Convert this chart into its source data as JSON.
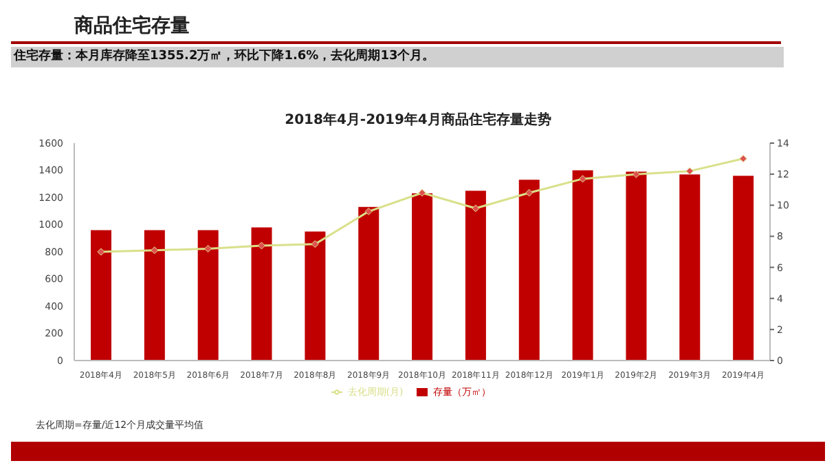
{
  "chart_data": {
    "type": "bar",
    "title": "2018年4月-2019年4月商品住宅存量走势",
    "annotations": [
      "商品住宅存量",
      "住宅存量：本月库存降至1355.2万㎡，环比下降1.6%，去化周期13个月。",
      "去化周期=存量/近12个月成交量平均值"
    ],
    "categories": [
      "2018年4月",
      "2018年5月",
      "2018年6月",
      "2018年7月",
      "2018年8月",
      "2018年9月",
      "2018年10月",
      "2018年11月",
      "2018年12月",
      "2019年1月",
      "2019年2月",
      "2019年3月",
      "2019年4月"
    ],
    "series": [
      {
        "name": "存量（万㎡）",
        "color": "#c00000",
        "values": [
          960,
          960,
          960,
          980,
          950,
          1130,
          1230,
          1250,
          1330,
          1400,
          1390,
          1370,
          1360
        ]
      },
      {
        "name": "去化周期(月)",
        "type": "line",
        "axis": "y2",
        "color": "#d9e08a",
        "marker": "diamond",
        "values": [
          7.0,
          7.1,
          7.2,
          7.4,
          7.5,
          9.6,
          10.8,
          9.8,
          10.8,
          11.7,
          12.0,
          12.2,
          13.0
        ]
      }
    ],
    "ylim": [
      0,
      1600
    ],
    "yticks": [
      0,
      200,
      400,
      600,
      800,
      1000,
      1200,
      1400,
      1600
    ],
    "y2lim": [
      0,
      14
    ],
    "y2ticks": [
      0,
      2,
      4,
      6,
      8,
      10,
      12,
      14
    ],
    "grid": false,
    "legend": "bottom"
  }
}
